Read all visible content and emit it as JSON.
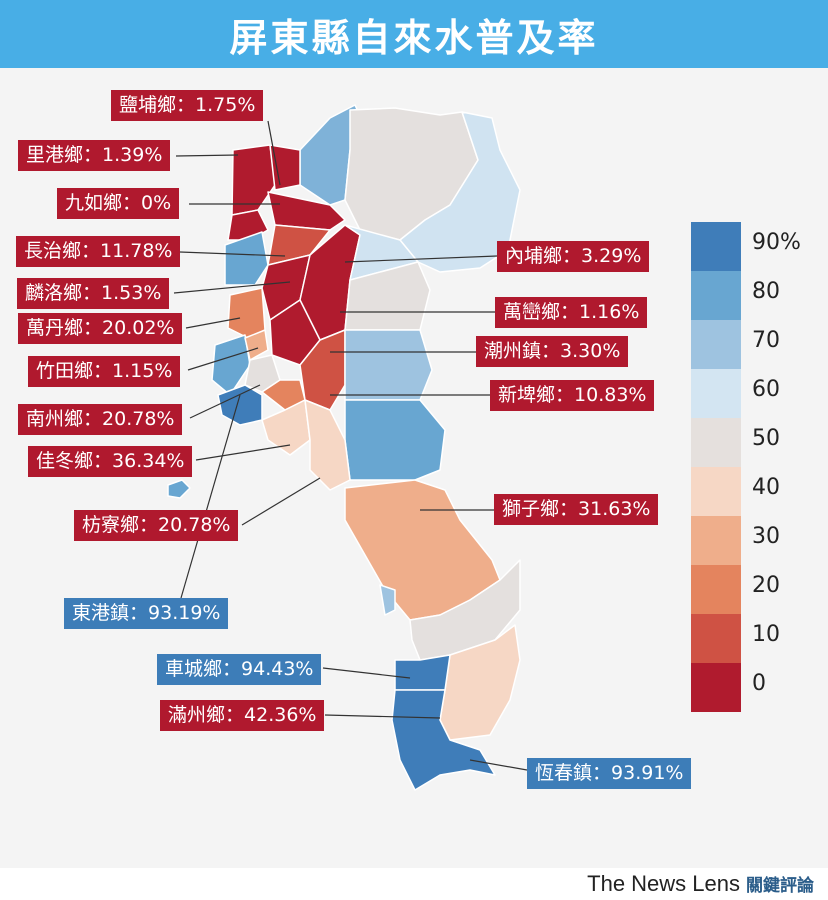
{
  "title": "屏東縣自來水普及率",
  "brand": {
    "name": "The News Lens",
    "sub": "關鍵評論"
  },
  "legend": {
    "ticks": [
      "90%",
      "80",
      "70",
      "60",
      "50",
      "40",
      "30",
      "20",
      "10",
      "0"
    ],
    "colors": [
      "#3f7db9",
      "#68a6d1",
      "#9ec3e0",
      "#d3e5f2",
      "#e5e0dd",
      "#f6d7c5",
      "#efae8b",
      "#e4845e",
      "#cf5244",
      "#b01b2e"
    ]
  },
  "townships": [
    {
      "name": "鹽埔鄉",
      "value": "1.75%",
      "level": "0"
    },
    {
      "name": "里港鄉",
      "value": "1.39%",
      "level": "0"
    },
    {
      "name": "九如鄉",
      "value": "0%",
      "level": "0"
    },
    {
      "name": "長治鄉",
      "value": "11.78%",
      "level": "10"
    },
    {
      "name": "麟洛鄉",
      "value": "1.53%",
      "level": "0"
    },
    {
      "name": "萬丹鄉",
      "value": "20.02%",
      "level": "20"
    },
    {
      "name": "竹田鄉",
      "value": "1.15%",
      "level": "0"
    },
    {
      "name": "南州鄉",
      "value": "20.78%",
      "level": "20"
    },
    {
      "name": "佳冬鄉",
      "value": "36.34%",
      "level": "30"
    },
    {
      "name": "枋寮鄉",
      "value": "20.78%",
      "level": "20"
    },
    {
      "name": "東港鎮",
      "value": "93.19%",
      "level": "90"
    },
    {
      "name": "車城鄉",
      "value": "94.43%",
      "level": "90"
    },
    {
      "name": "滿州鄉",
      "value": "42.36%",
      "level": "40"
    },
    {
      "name": "內埔鄉",
      "value": "3.29%",
      "level": "0"
    },
    {
      "name": "萬巒鄉",
      "value": "1.16%",
      "level": "0"
    },
    {
      "name": "潮州鎮",
      "value": "3.30%",
      "level": "0"
    },
    {
      "name": "新埤鄉",
      "value": "10.83%",
      "level": "10"
    },
    {
      "name": "獅子鄉",
      "value": "31.63%",
      "level": "30"
    },
    {
      "name": "恆春鎮",
      "value": "93.91%",
      "level": "90"
    }
  ]
}
